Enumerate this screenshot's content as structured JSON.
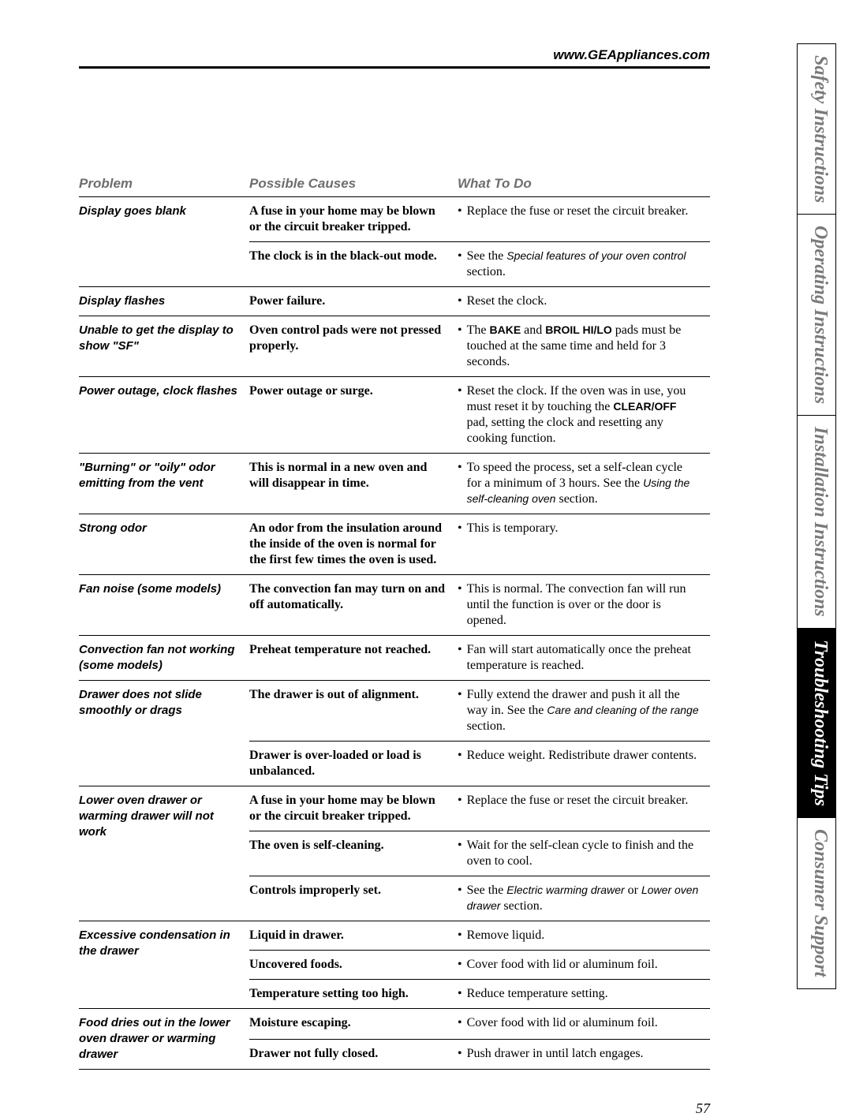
{
  "header": {
    "url": "www.GEAppliances.com"
  },
  "colors": {
    "heading_gray": "#6e6e6e",
    "tab_gray": "#7a7a7a",
    "black": "#000000",
    "white": "#ffffff"
  },
  "table": {
    "headers": {
      "problem": "Problem",
      "cause": "Possible Causes",
      "whattodo": "What To Do"
    },
    "rows": [
      {
        "problem": "Display goes blank",
        "cause": "A fuse in your home may be blown or the circuit breaker tripped.",
        "what_html": "Replace the fuse or reset the circuit breaker."
      },
      {
        "problem": "",
        "cause": "The clock is in the black-out mode.",
        "what_html": "See the <span class='wt-italic'>Special features of your oven control</span> section."
      },
      {
        "problem": "Display flashes",
        "cause": "Power failure.",
        "what_html": "Reset the clock."
      },
      {
        "problem": "Unable to get the display to show \"SF\"",
        "cause": "Oven control pads were not pressed properly.",
        "what_html": "The <span class='wt-bold'>BAKE</span> and <span class='wt-bold'>BROIL HI/LO</span> pads must be touched at the same time and held for 3 seconds."
      },
      {
        "problem": "Power outage, clock flashes",
        "cause": "Power outage or surge.",
        "what_html": "Reset the clock. If the oven was in use, you must reset it by touching the <span class='wt-bold'>CLEAR/OFF</span> pad, setting the clock and resetting any cooking function."
      },
      {
        "problem": "\"Burning\" or \"oily\" odor emitting from the vent",
        "cause": "This is normal in a new oven and will disappear in time.",
        "what_html": "To speed the process, set a self-clean cycle for a minimum of 3 hours. See the <span class='wt-italic'>Using the self-cleaning oven</span> section."
      },
      {
        "problem": "Strong odor",
        "cause": "An odor from the insulation around the inside of the oven is normal for the first few times the oven is used.",
        "what_html": "This is temporary."
      },
      {
        "problem": "Fan noise (some models)",
        "cause": "The convection fan may turn on and off automatically.",
        "what_html": "This is normal. The convection fan will run until the function is over or the door is opened."
      },
      {
        "problem": "Convection fan not working (some models)",
        "cause": "Preheat temperature not reached.",
        "what_html": "Fan will start automatically once the preheat temperature is reached."
      },
      {
        "problem": "Drawer does not slide smoothly or drags",
        "cause": "The drawer is out of alignment.",
        "what_html": "Fully extend the drawer and push it all the way in. See the <span class='wt-italic'>Care and cleaning of the range</span> section."
      },
      {
        "problem": "",
        "cause": "Drawer is over-loaded or load is unbalanced.",
        "what_html": "Reduce weight. Redistribute drawer contents."
      },
      {
        "problem": "Lower oven drawer or warming drawer will not work",
        "cause": "A fuse in your home may be blown or the circuit breaker tripped.",
        "what_html": "Replace the fuse or reset the circuit breaker."
      },
      {
        "problem": "",
        "cause": "The oven is self-cleaning.",
        "what_html": "Wait for the self-clean cycle to finish and the oven to cool."
      },
      {
        "problem": "",
        "cause": "Controls improperly set.",
        "what_html": "See the <span class='wt-italic'>Electric warming drawer</span> or <span class='wt-italic'>Lower oven drawer</span> section."
      },
      {
        "problem": "Excessive condensation in the drawer",
        "cause": "Liquid in drawer.",
        "what_html": "Remove liquid."
      },
      {
        "problem": "",
        "cause": "Uncovered foods.",
        "what_html": "Cover food with lid or aluminum foil."
      },
      {
        "problem": "",
        "cause": "Temperature setting too high.",
        "what_html": "Reduce temperature setting."
      },
      {
        "problem": "Food dries out in the lower oven drawer or warming drawer",
        "cause": "Moisture escaping.",
        "what_html": "Cover food with lid or aluminum foil."
      },
      {
        "problem": "",
        "cause": "Drawer not fully closed.",
        "what_html": "Push drawer in until latch engages."
      }
    ]
  },
  "side_tabs": [
    {
      "label": "Safety Instructions",
      "active": false
    },
    {
      "label": "Operating Instructions",
      "active": false
    },
    {
      "label": "Installation Instructions",
      "active": false
    },
    {
      "label": "Troubleshooting Tips",
      "active": true
    },
    {
      "label": "Consumer Support",
      "active": false
    }
  ],
  "page_number": "57"
}
